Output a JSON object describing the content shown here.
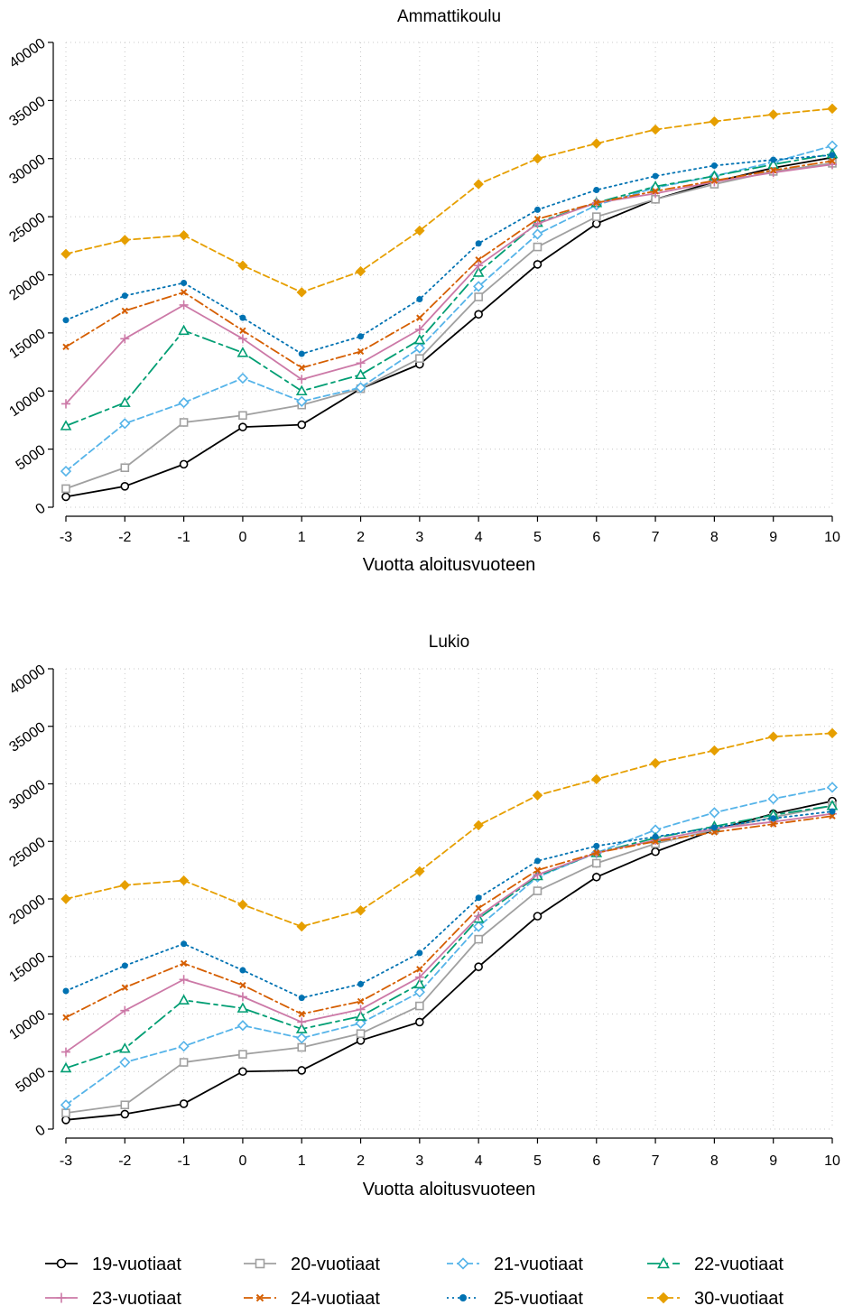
{
  "chart_data": [
    {
      "type": "line",
      "title": "Ammattikoulu",
      "xlabel": "Vuotta aloitusvuoteen",
      "ylabel": "",
      "x": [
        -3,
        -2,
        -1,
        0,
        1,
        2,
        3,
        4,
        5,
        6,
        7,
        8,
        9,
        10
      ],
      "x_ticks": [
        "-3",
        "-2",
        "-1",
        "0",
        "1",
        "2",
        "3",
        "4",
        "5",
        "6",
        "7",
        "8",
        "9",
        "10"
      ],
      "ylim": [
        0,
        40000
      ],
      "y_ticks": [
        "0",
        "5000",
        "10000",
        "15000",
        "20000",
        "25000",
        "30000",
        "35000",
        "40000"
      ],
      "grid": true,
      "series": [
        {
          "name": "19-vuotiaat",
          "values": [
            900,
            1800,
            3700,
            6900,
            7100,
            10200,
            12300,
            16600,
            20900,
            24400,
            26500,
            28000,
            29200,
            30100
          ]
        },
        {
          "name": "20-vuotiaat",
          "values": [
            1600,
            3400,
            7300,
            7900,
            8800,
            10200,
            12800,
            18100,
            22400,
            25000,
            26500,
            27800,
            28900,
            29600
          ]
        },
        {
          "name": "21-vuotiaat",
          "values": [
            3100,
            7200,
            9000,
            11100,
            9100,
            10300,
            13700,
            19000,
            23500,
            26000,
            27500,
            28500,
            29700,
            31100
          ]
        },
        {
          "name": "22-vuotiaat",
          "values": [
            7000,
            9000,
            15200,
            13300,
            10000,
            11400,
            14400,
            20200,
            24500,
            26200,
            27600,
            28500,
            29500,
            30400
          ]
        },
        {
          "name": "23-vuotiaat",
          "values": [
            8900,
            14500,
            17400,
            14500,
            11000,
            12400,
            15300,
            20800,
            24400,
            26200,
            27000,
            28000,
            28800,
            29500
          ]
        },
        {
          "name": "24-vuotiaat",
          "values": [
            13800,
            16900,
            18500,
            15200,
            12000,
            13400,
            16300,
            21300,
            24800,
            26200,
            27200,
            28100,
            29000,
            29800
          ]
        },
        {
          "name": "25-vuotiaat",
          "values": [
            16100,
            18200,
            19300,
            16300,
            13200,
            14700,
            17900,
            22700,
            25600,
            27300,
            28500,
            29400,
            29900,
            30300
          ]
        },
        {
          "name": "30-vuotiaat",
          "values": [
            21800,
            23000,
            23400,
            20800,
            18500,
            20300,
            23800,
            27800,
            30000,
            31300,
            32500,
            33200,
            33800,
            34300
          ]
        }
      ]
    },
    {
      "type": "line",
      "title": "Lukio",
      "xlabel": "Vuotta aloitusvuoteen",
      "ylabel": "",
      "x": [
        -3,
        -2,
        -1,
        0,
        1,
        2,
        3,
        4,
        5,
        6,
        7,
        8,
        9,
        10
      ],
      "x_ticks": [
        "-3",
        "-2",
        "-1",
        "0",
        "1",
        "2",
        "3",
        "4",
        "5",
        "6",
        "7",
        "8",
        "9",
        "10"
      ],
      "ylim": [
        0,
        40000
      ],
      "y_ticks": [
        "0",
        "5000",
        "10000",
        "15000",
        "20000",
        "25000",
        "30000",
        "35000",
        "40000"
      ],
      "grid": true,
      "series": [
        {
          "name": "19-vuotiaat",
          "values": [
            800,
            1300,
            2200,
            5000,
            5100,
            7700,
            9300,
            14100,
            18500,
            21900,
            24100,
            26000,
            27400,
            28500
          ]
        },
        {
          "name": "20-vuotiaat",
          "values": [
            1400,
            2100,
            5800,
            6500,
            7100,
            8300,
            10700,
            16500,
            20700,
            23100,
            24800,
            26000,
            27100,
            28100
          ]
        },
        {
          "name": "21-vuotiaat",
          "values": [
            2100,
            5800,
            7200,
            9000,
            7900,
            9200,
            11900,
            17600,
            21900,
            24000,
            26000,
            27500,
            28700,
            29700
          ]
        },
        {
          "name": "22-vuotiaat",
          "values": [
            5300,
            7000,
            11200,
            10500,
            8700,
            9800,
            12600,
            18300,
            22000,
            24000,
            25300,
            26300,
            27300,
            28100
          ]
        },
        {
          "name": "23-vuotiaat",
          "values": [
            6700,
            10300,
            13000,
            11500,
            9300,
            10400,
            13200,
            18500,
            22100,
            24000,
            25100,
            26100,
            26700,
            27400
          ]
        },
        {
          "name": "24-vuotiaat",
          "values": [
            9700,
            12300,
            14400,
            12500,
            10000,
            11100,
            13900,
            19200,
            22500,
            24000,
            25000,
            25800,
            26500,
            27200
          ]
        },
        {
          "name": "25-vuotiaat",
          "values": [
            12000,
            14200,
            16100,
            13800,
            11400,
            12600,
            15300,
            20100,
            23300,
            24600,
            25400,
            26200,
            27000,
            27600
          ]
        },
        {
          "name": "30-vuotiaat",
          "values": [
            20000,
            21200,
            21600,
            19500,
            17600,
            19000,
            22400,
            26400,
            29000,
            30400,
            31800,
            32900,
            34100,
            34400
          ]
        }
      ]
    }
  ],
  "legend": {
    "placement": "bottom",
    "items": [
      {
        "name": "19-vuotiaat",
        "color": "#000000",
        "marker": "circle-open",
        "dash": "solid"
      },
      {
        "name": "20-vuotiaat",
        "color": "#a0a0a0",
        "marker": "square-open",
        "dash": "solid"
      },
      {
        "name": "21-vuotiaat",
        "color": "#56b4e9",
        "marker": "diamond-open",
        "dash": "dashed"
      },
      {
        "name": "22-vuotiaat",
        "color": "#009e73",
        "marker": "triangle-open",
        "dash": "longdash"
      },
      {
        "name": "23-vuotiaat",
        "color": "#cc79a7",
        "marker": "plus",
        "dash": "solid"
      },
      {
        "name": "24-vuotiaat",
        "color": "#d55e00",
        "marker": "cross",
        "dash": "dashdot"
      },
      {
        "name": "25-vuotiaat",
        "color": "#0072b2",
        "marker": "dot",
        "dash": "dotted"
      },
      {
        "name": "30-vuotiaat",
        "color": "#e69f00",
        "marker": "diamond-filled",
        "dash": "dashed"
      }
    ]
  }
}
